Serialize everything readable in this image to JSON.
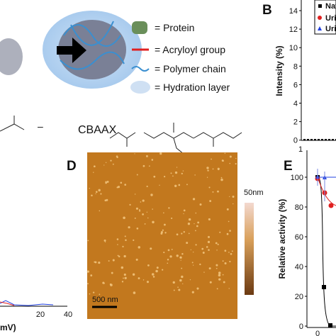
{
  "schematic": {
    "legend": [
      "= Protein",
      "= Acryloyl group",
      "= Polymer chain",
      "= Hydration layer"
    ],
    "monomer_label": "CBAAX",
    "charge": "–"
  },
  "panel_b": {
    "label": "B",
    "y_axis_label": "Intensity (%)",
    "y_tick_labels": [
      "14",
      "12",
      "10",
      "8",
      "6",
      "4",
      "2",
      "0"
    ],
    "x_tick_labels": [
      "1"
    ],
    "legend": [
      "Nativ",
      "Urica",
      "Urica"
    ]
  },
  "panel_c": {
    "x_axis_label": "mV)",
    "x_tick_labels": [
      "20",
      "40"
    ]
  },
  "panel_d": {
    "label": "D",
    "scale_bar": "500 nm",
    "colorbar_max": "50nm"
  },
  "panel_e": {
    "label": "E",
    "y_axis_label": "Relative activity (%)",
    "y_tick_labels": [
      "100",
      "80",
      "60",
      "40",
      "20",
      "0"
    ],
    "x_tick_labels": [
      "0"
    ]
  }
}
